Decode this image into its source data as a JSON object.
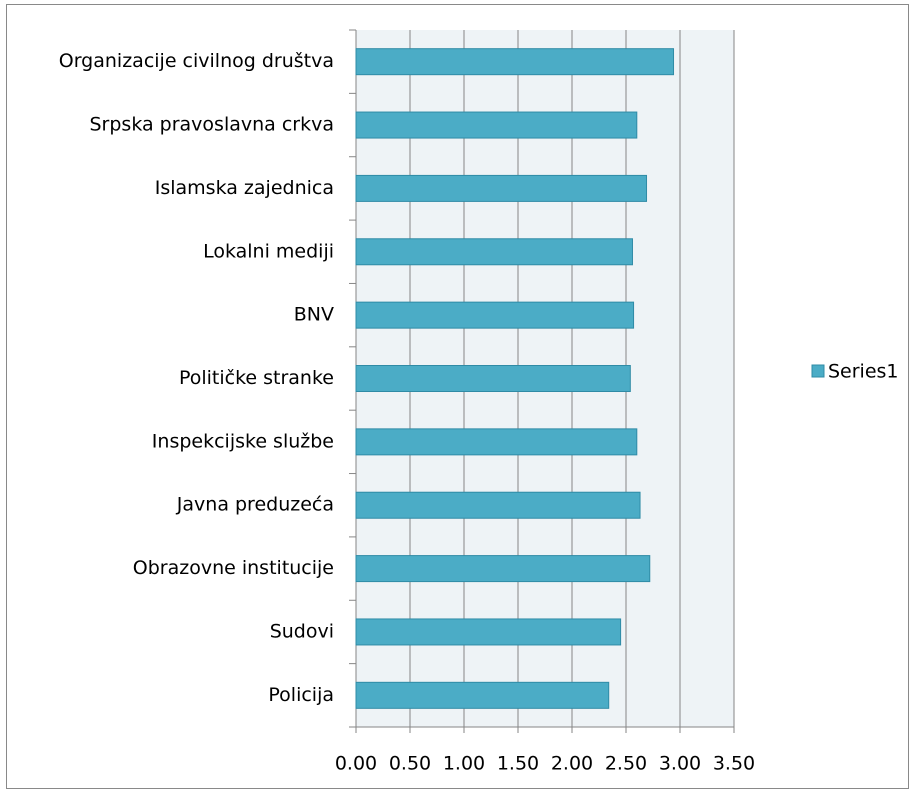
{
  "chart_data": {
    "type": "bar",
    "orientation": "horizontal",
    "categories": [
      "Organizacije civilnog društva",
      "Srpska pravoslavna crkva",
      "Islamska zajednica",
      "Lokalni mediji",
      "BNV",
      "Političke stranke",
      "Inspekcijske službe",
      "Javna preduzeća",
      "Obrazovne institucije",
      "Sudovi",
      "Policija"
    ],
    "series": [
      {
        "name": "Series1",
        "color": "#4bacc6",
        "values": [
          2.94,
          2.6,
          2.69,
          2.56,
          2.57,
          2.54,
          2.6,
          2.63,
          2.72,
          2.45,
          2.34
        ]
      }
    ],
    "xlim": [
      0,
      3.5
    ],
    "xticks": [
      {
        "value": 0,
        "label": "0.00"
      },
      {
        "value": 0.5,
        "label": "0.50"
      },
      {
        "value": 1,
        "label": "1.00"
      },
      {
        "value": 1.5,
        "label": "1.50"
      },
      {
        "value": 2,
        "label": "2.00"
      },
      {
        "value": 2.5,
        "label": "2.50"
      },
      {
        "value": 3,
        "label": "3.00"
      },
      {
        "value": 3.5,
        "label": "3.50"
      }
    ],
    "grid": true,
    "legend": "right"
  }
}
